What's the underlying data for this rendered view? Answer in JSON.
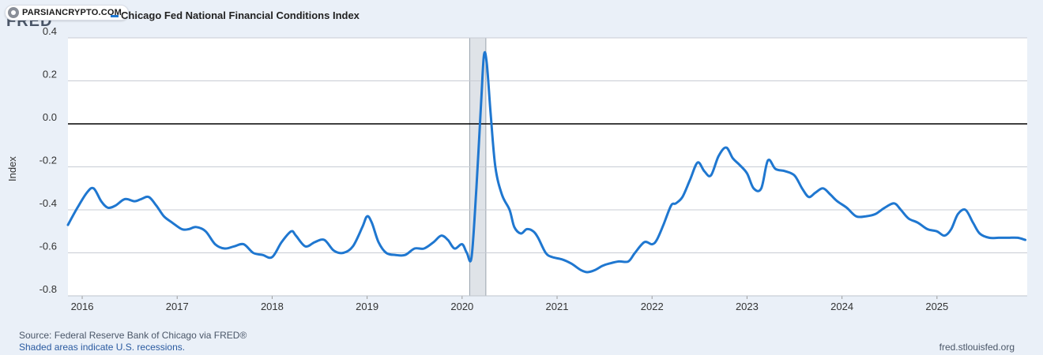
{
  "watermark": {
    "text": "PARSIANCRYPTO.COM"
  },
  "header": {
    "logo_text": "FRED"
  },
  "chart_data": {
    "type": "line",
    "title": "Chicago Fed National Financial Conditions Index",
    "ylabel": "Index",
    "xlabel": "",
    "ylim": [
      -0.8,
      0.4
    ],
    "xlim": [
      2015.85,
      2025.95
    ],
    "y_ticks": [
      "0.4",
      "0.2",
      "0.0",
      "-0.2",
      "-0.4",
      "-0.6",
      "-0.8"
    ],
    "y_tick_values": [
      0.4,
      0.2,
      0.0,
      -0.2,
      -0.4,
      -0.6,
      -0.8
    ],
    "x_ticks": [
      "2016",
      "2017",
      "2018",
      "2019",
      "2020",
      "2021",
      "2022",
      "2023",
      "2024",
      "2025"
    ],
    "x_tick_values": [
      2016,
      2017,
      2018,
      2019,
      2020,
      2021,
      2022,
      2023,
      2024,
      2025
    ],
    "recessions": [
      [
        2020.08,
        2020.25
      ]
    ],
    "zero_line": 0.0,
    "grid": true,
    "colors": {
      "line": "#1f77d0",
      "grid": "#c8ccd4",
      "zero_line": "#000000",
      "recession": "#dfe3e8",
      "plot_background": "#ffffff"
    },
    "series": [
      {
        "name": "Chicago Fed National Financial Conditions Index",
        "x": [
          2015.85,
          2015.95,
          2016.05,
          2016.12,
          2016.2,
          2016.27,
          2016.35,
          2016.45,
          2016.55,
          2016.62,
          2016.7,
          2016.78,
          2016.86,
          2016.95,
          2017.05,
          2017.12,
          2017.2,
          2017.3,
          2017.4,
          2017.5,
          2017.6,
          2017.7,
          2017.8,
          2017.9,
          2018.0,
          2018.1,
          2018.2,
          2018.25,
          2018.35,
          2018.45,
          2018.55,
          2018.65,
          2018.75,
          2018.85,
          2018.95,
          2019.0,
          2019.05,
          2019.12,
          2019.2,
          2019.3,
          2019.4,
          2019.5,
          2019.6,
          2019.7,
          2019.78,
          2019.85,
          2019.92,
          2020.0,
          2020.05,
          2020.1,
          2020.15,
          2020.2,
          2020.23,
          2020.26,
          2020.3,
          2020.35,
          2020.42,
          2020.5,
          2020.55,
          2020.62,
          2020.68,
          2020.75,
          2020.8,
          2020.88,
          2020.95,
          2021.05,
          2021.15,
          2021.25,
          2021.32,
          2021.4,
          2021.48,
          2021.55,
          2021.65,
          2021.75,
          2021.82,
          2021.92,
          2022.0,
          2022.05,
          2022.12,
          2022.2,
          2022.25,
          2022.32,
          2022.4,
          2022.48,
          2022.55,
          2022.62,
          2022.7,
          2022.78,
          2022.85,
          2022.92,
          2023.0,
          2023.07,
          2023.15,
          2023.22,
          2023.3,
          2023.4,
          2023.5,
          2023.58,
          2023.65,
          2023.72,
          2023.8,
          2023.88,
          2023.95,
          2024.05,
          2024.15,
          2024.25,
          2024.35,
          2024.45,
          2024.55,
          2024.62,
          2024.7,
          2024.8,
          2024.9,
          2025.0,
          2025.08,
          2025.15,
          2025.22,
          2025.3,
          2025.38,
          2025.45,
          2025.55,
          2025.65,
          2025.75,
          2025.85,
          2025.93
        ],
        "y": [
          -0.47,
          -0.39,
          -0.32,
          -0.3,
          -0.36,
          -0.39,
          -0.38,
          -0.35,
          -0.36,
          -0.35,
          -0.34,
          -0.38,
          -0.43,
          -0.46,
          -0.49,
          -0.49,
          -0.48,
          -0.5,
          -0.56,
          -0.58,
          -0.57,
          -0.56,
          -0.6,
          -0.61,
          -0.62,
          -0.55,
          -0.5,
          -0.52,
          -0.57,
          -0.55,
          -0.54,
          -0.59,
          -0.6,
          -0.57,
          -0.48,
          -0.43,
          -0.46,
          -0.55,
          -0.6,
          -0.61,
          -0.61,
          -0.58,
          -0.58,
          -0.55,
          -0.52,
          -0.54,
          -0.58,
          -0.56,
          -0.6,
          -0.62,
          -0.3,
          0.1,
          0.32,
          0.28,
          0.05,
          -0.2,
          -0.33,
          -0.4,
          -0.48,
          -0.51,
          -0.49,
          -0.5,
          -0.53,
          -0.6,
          -0.62,
          -0.63,
          -0.65,
          -0.68,
          -0.69,
          -0.68,
          -0.66,
          -0.65,
          -0.64,
          -0.64,
          -0.6,
          -0.55,
          -0.56,
          -0.54,
          -0.47,
          -0.38,
          -0.37,
          -0.34,
          -0.26,
          -0.18,
          -0.22,
          -0.24,
          -0.15,
          -0.11,
          -0.16,
          -0.19,
          -0.23,
          -0.3,
          -0.3,
          -0.17,
          -0.21,
          -0.22,
          -0.24,
          -0.3,
          -0.34,
          -0.32,
          -0.3,
          -0.33,
          -0.36,
          -0.39,
          -0.43,
          -0.43,
          -0.42,
          -0.39,
          -0.37,
          -0.4,
          -0.44,
          -0.46,
          -0.49,
          -0.5,
          -0.52,
          -0.49,
          -0.42,
          -0.4,
          -0.46,
          -0.51,
          -0.53,
          -0.53,
          -0.53,
          -0.53,
          -0.54
        ]
      }
    ]
  },
  "footer": {
    "source": "Source: Federal Reserve Bank of Chicago via FRED®",
    "note": "Shaded areas indicate U.S. recessions.",
    "url": "fred.stlouisfed.org"
  }
}
